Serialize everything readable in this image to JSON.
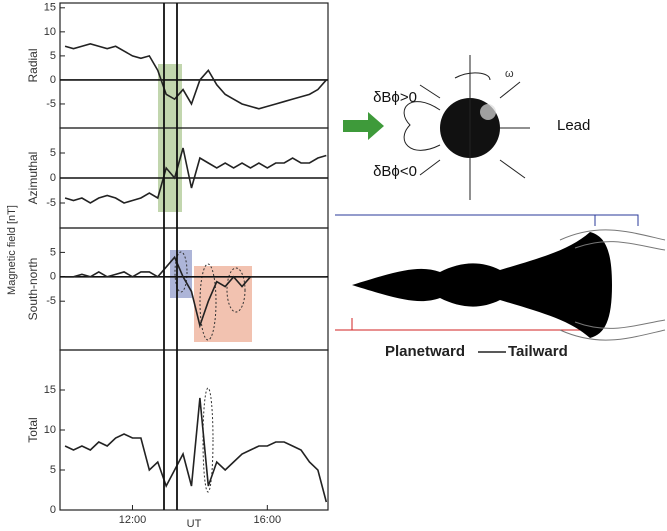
{
  "chart_data": [
    {
      "type": "line",
      "ylabel": "Radial",
      "color": "#222",
      "zero_line": true,
      "x": [
        10,
        10.25,
        10.5,
        10.75,
        11,
        11.25,
        11.5,
        11.75,
        12,
        12.25,
        12.5,
        12.75,
        13,
        13.25,
        13.5,
        13.75,
        14,
        14.25,
        14.5,
        14.75,
        15,
        15.25,
        15.5,
        15.75,
        16,
        16.25,
        16.5,
        16.75,
        17,
        17.25,
        17.5,
        17.75
      ],
      "values": [
        7,
        6.5,
        7,
        7.5,
        7,
        6.5,
        7,
        6,
        5,
        4.5,
        5,
        2,
        -3,
        -4,
        -2,
        -5,
        0,
        2,
        -1,
        -3,
        -4,
        -5,
        -5.5,
        -6,
        -5.5,
        -5,
        -4.5,
        -4,
        -3.5,
        -3,
        -2,
        0
      ],
      "xlim": [
        9.85,
        17.8
      ],
      "ylim": [
        -10,
        16
      ],
      "yticks": [
        -5,
        0,
        5,
        10,
        15
      ]
    },
    {
      "type": "line",
      "ylabel": "Azimuthal",
      "color": "#222",
      "zero_line": true,
      "x": [
        10,
        10.25,
        10.5,
        10.75,
        11,
        11.25,
        11.5,
        11.75,
        12,
        12.25,
        12.5,
        12.75,
        13,
        13.25,
        13.5,
        13.75,
        14,
        14.25,
        14.5,
        14.75,
        15,
        15.25,
        15.5,
        15.75,
        16,
        16.25,
        16.5,
        16.75,
        17,
        17.25,
        17.5,
        17.75
      ],
      "values": [
        -4,
        -4.5,
        -4,
        -5,
        -4,
        -3.5,
        -4,
        -5,
        -4.5,
        -4,
        -3,
        -4,
        2,
        0,
        6,
        -2,
        4,
        3,
        2,
        3,
        2,
        3,
        2,
        3,
        2,
        3,
        3,
        4,
        3,
        3,
        4,
        4.5
      ],
      "xlim": [
        9.85,
        17.8
      ],
      "ylim": [
        -10,
        10
      ],
      "yticks": [
        -5,
        0,
        5
      ]
    },
    {
      "type": "line",
      "ylabel": "South-north",
      "color": "#222",
      "zero_line": true,
      "x": [
        10,
        10.25,
        10.5,
        10.75,
        11,
        11.25,
        11.5,
        11.75,
        12,
        12.25,
        12.5,
        12.75,
        13,
        13.25,
        13.5,
        13.75,
        14,
        14.25,
        14.5,
        14.75,
        15,
        15.25,
        15.5,
        15.75,
        16,
        16.25,
        16.5,
        16.75,
        17,
        17.25,
        17.5,
        17.75
      ],
      "values": [
        0,
        0,
        0.5,
        0,
        1,
        0,
        0.5,
        1,
        0,
        1,
        1,
        0,
        2,
        4,
        0,
        -3,
        -10,
        -5,
        -1,
        -2,
        0,
        -2,
        0,
        0,
        0,
        0,
        0,
        0,
        0,
        0,
        0,
        0
      ],
      "xlim": [
        9.85,
        17.8
      ],
      "ylim": [
        -15,
        10
      ],
      "yticks": [
        -5,
        0,
        5
      ]
    },
    {
      "type": "line",
      "ylabel": "Total",
      "color": "#222",
      "zero_line": false,
      "xlabel": "UT",
      "x": [
        10,
        10.25,
        10.5,
        10.75,
        11,
        11.25,
        11.5,
        11.75,
        12,
        12.25,
        12.5,
        12.75,
        13,
        13.25,
        13.5,
        13.75,
        14,
        14.25,
        14.5,
        14.75,
        15,
        15.25,
        15.5,
        15.75,
        16,
        16.25,
        16.5,
        16.75,
        17,
        17.25,
        17.5,
        17.75
      ],
      "values": [
        8,
        7.5,
        8,
        7.5,
        8.5,
        8,
        9,
        9.5,
        9,
        9,
        5,
        6,
        3,
        5,
        7,
        3,
        14,
        3,
        6,
        5,
        6,
        7,
        7.5,
        8,
        8,
        8.5,
        8.5,
        8,
        7.5,
        6,
        5,
        1
      ],
      "xlim": [
        9.85,
        17.8
      ],
      "ylim": [
        0,
        20
      ],
      "yticks": [
        0,
        5,
        10,
        15
      ],
      "xticks": [
        {
          "value": 12,
          "label": "12:00"
        },
        {
          "value": 16,
          "label": "16:00"
        }
      ]
    }
  ],
  "figure": {
    "ylabel": "Magnetic field [nT]"
  },
  "diagram": {
    "positive": "δBϕ>0",
    "negative": "δBϕ<0",
    "omega": "ω",
    "lead": "Lead",
    "planetward": "Planetward",
    "tailward": "Tailward"
  }
}
